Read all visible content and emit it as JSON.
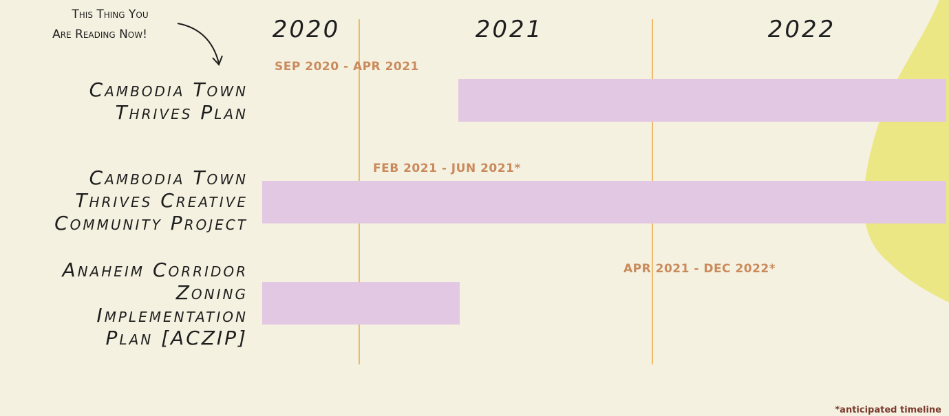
{
  "annotation": [
    "This Thing You",
    "Are Reading Now!"
  ],
  "years": [
    "2020",
    "2021",
    "2022"
  ],
  "rows": [
    {
      "label": [
        "Cambodia Town",
        "Thrives Plan"
      ],
      "date_range": "SEP 2020 - APR 2021"
    },
    {
      "label": [
        "Cambodia Town",
        "Thrives Creative",
        "Community Project"
      ],
      "date_range": "FEB 2021 - JUN 2021*"
    },
    {
      "label": [
        "Anaheim Corridor",
        "Zoning",
        "Implementation",
        "Plan [ACZIP]"
      ],
      "date_range": "APR 2021 - DEC 2022*"
    }
  ],
  "footnote": "*anticipated timeline"
}
